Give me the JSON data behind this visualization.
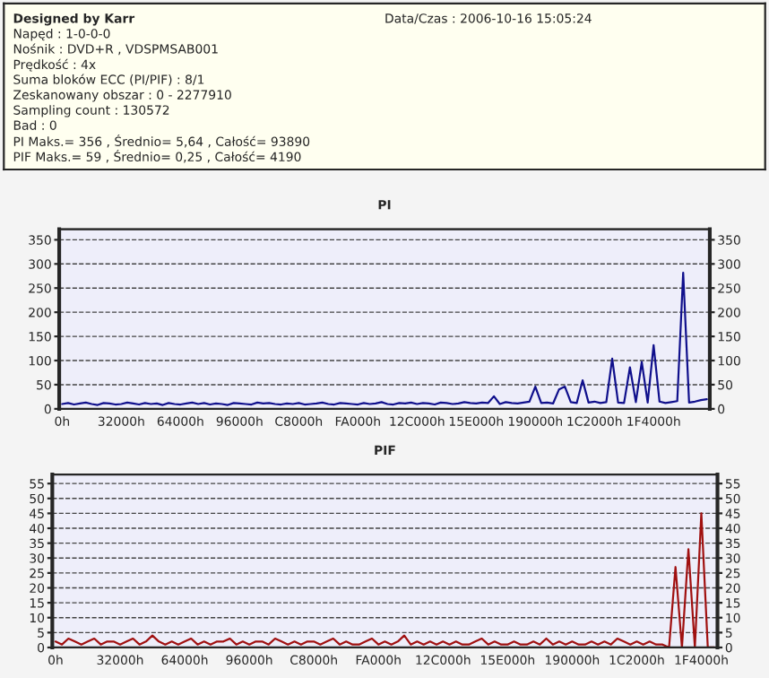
{
  "chart_data": [
    {
      "type": "other",
      "title": "Designed by Karr",
      "annotations": [
        "Data/Czas : 2006-10-16 15:05:24",
        "Napęd : 1-0-0-0",
        "Nośnik : DVD+R , VDSPMSAB001",
        "Prędkość : 4x",
        "Suma bloków ECC (PI/PIF) : 8/1",
        "Zeskanowany obszar : 0 - 2277910",
        "Sampling count : 130572",
        "Bad : 0",
        "PI Maks.= 356 , Średnio= 5,64 , Całość= 93890",
        "PIF Maks.= 59 , Średnio= 0,25 , Całość= 4190"
      ]
    },
    {
      "type": "line",
      "title": "PI",
      "grid": "y",
      "categories": [
        "0h",
        null,
        null,
        null,
        null,
        null,
        null,
        null,
        null,
        null,
        "32000h",
        null,
        null,
        null,
        null,
        null,
        null,
        null,
        null,
        null,
        "64000h",
        null,
        null,
        null,
        null,
        null,
        null,
        null,
        null,
        null,
        "96000h",
        null,
        null,
        null,
        null,
        null,
        null,
        null,
        null,
        null,
        "C8000h",
        null,
        null,
        null,
        null,
        null,
        null,
        null,
        null,
        null,
        "FA000h",
        null,
        null,
        null,
        null,
        null,
        null,
        null,
        null,
        null,
        "12C000h",
        null,
        null,
        null,
        null,
        null,
        null,
        null,
        null,
        null,
        "15E000h",
        null,
        null,
        null,
        null,
        null,
        null,
        null,
        null,
        null,
        "190000h",
        null,
        null,
        null,
        null,
        null,
        null,
        null,
        null,
        null,
        "1C2000h",
        null,
        null,
        null,
        null,
        null,
        null,
        null,
        null,
        null,
        "1F4000h",
        null,
        null,
        null,
        null,
        null,
        null,
        null,
        null,
        null
      ],
      "ylim": [
        0,
        372
      ],
      "yticks": [
        0,
        50,
        100,
        150,
        200,
        250,
        300,
        350
      ],
      "y2lim": [
        0,
        372
      ],
      "y2ticks": [
        0,
        50,
        100,
        150,
        200,
        250,
        300,
        350
      ],
      "series": [
        {
          "color": "#10108c",
          "values": [
            10,
            12,
            9,
            11,
            13,
            10,
            8,
            12,
            11,
            9,
            10,
            13,
            11,
            9,
            12,
            10,
            11,
            8,
            12,
            10,
            9,
            11,
            13,
            10,
            12,
            9,
            11,
            10,
            8,
            12,
            11,
            10,
            9,
            13,
            11,
            12,
            10,
            9,
            11,
            10,
            12,
            9,
            10,
            11,
            13,
            10,
            9,
            12,
            11,
            10,
            9,
            12,
            10,
            11,
            14,
            10,
            9,
            12,
            11,
            13,
            10,
            12,
            11,
            9,
            13,
            12,
            10,
            11,
            14,
            12,
            11,
            13,
            12,
            26,
            10,
            14,
            12,
            11,
            13,
            15,
            46,
            12,
            13,
            11,
            40,
            46,
            14,
            12,
            59,
            13,
            15,
            12,
            14,
            104,
            13,
            12,
            86,
            14,
            97,
            13,
            132,
            15,
            12,
            14,
            16,
            282,
            13,
            15,
            18,
            20
          ]
        }
      ]
    },
    {
      "type": "line",
      "title": "PIF",
      "grid": "y",
      "categories": [
        "0h",
        null,
        null,
        null,
        null,
        null,
        null,
        null,
        null,
        null,
        "32000h",
        null,
        null,
        null,
        null,
        null,
        null,
        null,
        null,
        null,
        "64000h",
        null,
        null,
        null,
        null,
        null,
        null,
        null,
        null,
        null,
        "96000h",
        null,
        null,
        null,
        null,
        null,
        null,
        null,
        null,
        null,
        "C8000h",
        null,
        null,
        null,
        null,
        null,
        null,
        null,
        null,
        null,
        "FA000h",
        null,
        null,
        null,
        null,
        null,
        null,
        null,
        null,
        null,
        "12C000h",
        null,
        null,
        null,
        null,
        null,
        null,
        null,
        null,
        null,
        "15E000h",
        null,
        null,
        null,
        null,
        null,
        null,
        null,
        null,
        null,
        "190000h",
        null,
        null,
        null,
        null,
        null,
        null,
        null,
        null,
        null,
        "1C2000h",
        null,
        null,
        null,
        null,
        null,
        null,
        null,
        null,
        null,
        "1F4000h",
        null,
        null
      ],
      "ylim": [
        0,
        58
      ],
      "yticks": [
        0,
        5,
        10,
        15,
        20,
        25,
        30,
        35,
        40,
        45,
        50,
        55
      ],
      "y2lim": [
        0,
        58
      ],
      "y2ticks": [
        0,
        5,
        10,
        15,
        20,
        25,
        30,
        35,
        40,
        45,
        50,
        55
      ],
      "series": [
        {
          "color": "#a01010",
          "values": [
            2,
            1,
            3,
            2,
            1,
            2,
            3,
            1,
            2,
            2,
            1,
            2,
            3,
            1,
            2,
            4,
            2,
            1,
            2,
            1,
            2,
            3,
            1,
            2,
            1,
            2,
            2,
            3,
            1,
            2,
            1,
            2,
            2,
            1,
            3,
            2,
            1,
            2,
            1,
            2,
            2,
            1,
            2,
            3,
            1,
            2,
            1,
            1,
            2,
            3,
            1,
            2,
            1,
            2,
            4,
            1,
            2,
            1,
            2,
            1,
            2,
            1,
            2,
            1,
            1,
            2,
            3,
            1,
            2,
            1,
            1,
            2,
            1,
            1,
            2,
            1,
            3,
            1,
            2,
            1,
            2,
            1,
            1,
            2,
            1,
            2,
            1,
            3,
            2,
            1,
            2,
            1,
            2,
            1,
            1,
            0,
            27,
            0,
            33,
            0,
            45,
            0,
            0
          ]
        }
      ]
    }
  ]
}
